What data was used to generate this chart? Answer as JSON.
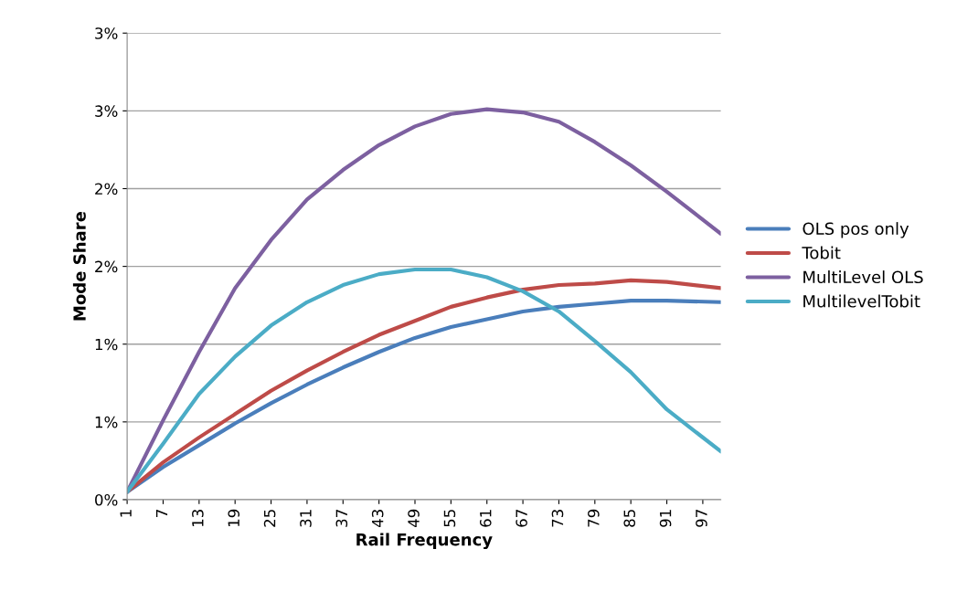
{
  "chart_data": {
    "type": "line",
    "xlabel": "Rail Frequency",
    "ylabel": "Mode Share",
    "x": [
      1,
      7,
      13,
      19,
      25,
      31,
      37,
      43,
      49,
      55,
      61,
      67,
      73,
      79,
      85,
      91,
      100
    ],
    "xlim": [
      1,
      100
    ],
    "xticks": [
      1,
      7,
      13,
      19,
      25,
      31,
      37,
      43,
      49,
      55,
      61,
      67,
      73,
      79,
      85,
      91,
      97
    ],
    "ylim": [
      0,
      3
    ],
    "yticks": [
      {
        "value": 0,
        "label": "0%"
      },
      {
        "value": 0.5,
        "label": "1%"
      },
      {
        "value": 1,
        "label": "1%"
      },
      {
        "value": 1.5,
        "label": "2%"
      },
      {
        "value": 2,
        "label": "2%"
      },
      {
        "value": 2.5,
        "label": "3%"
      },
      {
        "value": 3,
        "label": "3%"
      }
    ],
    "grid": "y",
    "legend": "right",
    "marker": "none",
    "line_style": "solid",
    "series": [
      {
        "name": "OLS pos only",
        "color": "#4a7ebb",
        "values": [
          0.05,
          0.21,
          0.35,
          0.49,
          0.62,
          0.74,
          0.85,
          0.95,
          1.04,
          1.11,
          1.16,
          1.21,
          1.24,
          1.26,
          1.28,
          1.28,
          1.27
        ]
      },
      {
        "name": "Tobit",
        "color": "#be4b48",
        "values": [
          0.05,
          0.24,
          0.4,
          0.55,
          0.7,
          0.83,
          0.95,
          1.06,
          1.15,
          1.24,
          1.3,
          1.35,
          1.38,
          1.39,
          1.41,
          1.4,
          1.36
        ]
      },
      {
        "name": "MultiLevel OLS",
        "color": "#7d60a0",
        "values": [
          0.05,
          0.51,
          0.95,
          1.36,
          1.67,
          1.93,
          2.12,
          2.28,
          2.4,
          2.48,
          2.51,
          2.49,
          2.43,
          2.3,
          2.15,
          1.98,
          1.71
        ]
      },
      {
        "name": "MultilevelTobit",
        "color": "#4bacc6",
        "values": [
          0.05,
          0.36,
          0.68,
          0.92,
          1.12,
          1.27,
          1.38,
          1.45,
          1.48,
          1.48,
          1.43,
          1.34,
          1.21,
          1.02,
          0.82,
          0.58,
          0.31
        ]
      }
    ]
  }
}
